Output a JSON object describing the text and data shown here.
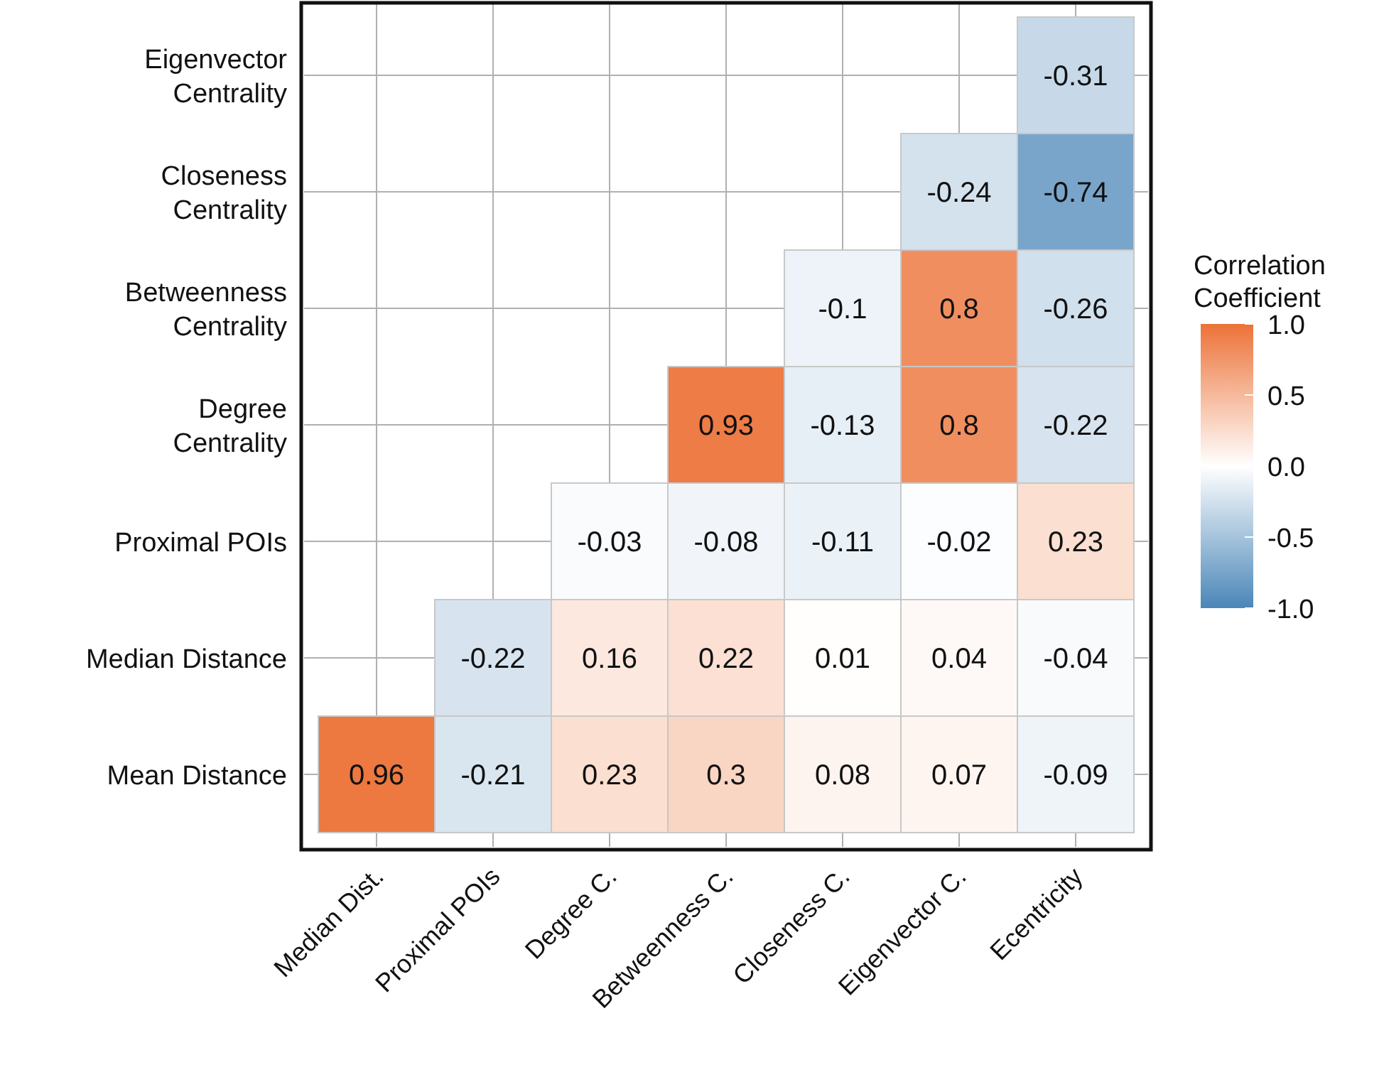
{
  "chart_data": {
    "type": "heatmap",
    "clabel": "Correlation Coefficient",
    "categories": [
      "Median Dist.",
      "Proximal POIs",
      "Degree C.",
      "Betweenness C.",
      "Closeness C.",
      "Eigenvector C.",
      "Ecentricity"
    ],
    "y_categories": [
      "Eigenvector Centrality",
      "Closeness Centrality",
      "Betweenness Centrality",
      "Degree Centrality",
      "Proximal POIs",
      "Median Distance",
      "Mean Distance"
    ],
    "cells": [
      [
        null,
        null,
        null,
        null,
        null,
        null,
        -0.31
      ],
      [
        null,
        null,
        null,
        null,
        null,
        -0.24,
        -0.74
      ],
      [
        null,
        null,
        null,
        null,
        -0.1,
        0.8,
        -0.26
      ],
      [
        null,
        null,
        null,
        0.93,
        -0.13,
        0.8,
        -0.22
      ],
      [
        null,
        null,
        -0.03,
        -0.08,
        -0.11,
        -0.02,
        0.23
      ],
      [
        null,
        -0.22,
        0.16,
        0.22,
        0.01,
        0.04,
        -0.04
      ],
      [
        0.96,
        -0.21,
        0.23,
        0.3,
        0.08,
        0.07,
        -0.09
      ]
    ],
    "clim": [
      -1,
      1
    ],
    "cticks": [
      {
        "value": 1,
        "label": "1.0"
      },
      {
        "value": 0.5,
        "label": "0.5"
      },
      {
        "value": 0,
        "label": "0.0"
      },
      {
        "value": -0.5,
        "label": "-0.5"
      },
      {
        "value": -1,
        "label": "-1.0"
      }
    ],
    "data_labels": true,
    "grid": true
  }
}
